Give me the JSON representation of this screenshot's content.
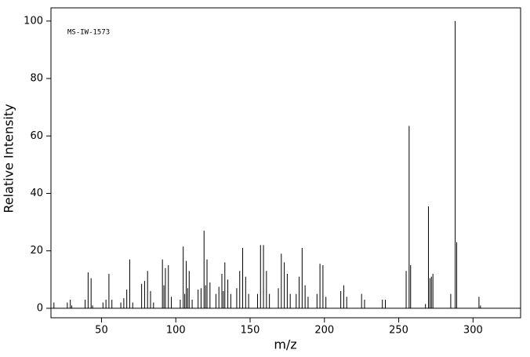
{
  "chart_data": {
    "type": "stem",
    "annotation": "MS-IW-1573",
    "x_label": "m/z",
    "y_label": "Relative Intensity",
    "color": "#000000",
    "x": [
      18,
      27,
      29,
      30,
      39,
      41,
      43,
      44,
      51,
      53,
      55,
      57,
      63,
      65,
      67,
      69,
      71,
      77,
      79,
      81,
      83,
      85,
      91,
      92,
      93,
      95,
      97,
      103,
      105,
      106,
      107,
      108,
      109,
      111,
      115,
      117,
      119,
      120,
      121,
      123,
      127,
      129,
      131,
      132,
      133,
      135,
      137,
      141,
      143,
      145,
      147,
      149,
      155,
      157,
      159,
      161,
      163,
      169,
      171,
      173,
      175,
      177,
      181,
      183,
      185,
      187,
      189,
      195,
      197,
      199,
      201,
      211,
      213,
      215,
      225,
      227,
      239,
      241,
      255,
      257,
      258,
      268,
      270,
      271,
      272,
      273,
      285,
      288,
      289,
      304,
      305
    ],
    "values": [
      2,
      2,
      3,
      1,
      3,
      12.5,
      10.5,
      1,
      2,
      3,
      12,
      3,
      2,
      3.5,
      6.5,
      17,
      2,
      8.5,
      9.5,
      13,
      6,
      2,
      17,
      8,
      14,
      15,
      4,
      3,
      21.5,
      5,
      16.5,
      7,
      13,
      3,
      6.5,
      7,
      27,
      8,
      17,
      9,
      5,
      7.5,
      12,
      6,
      16,
      10,
      5,
      7,
      13,
      21,
      11,
      5,
      5,
      22,
      22,
      13,
      5,
      7,
      19,
      16,
      12,
      5,
      5,
      11,
      21,
      8,
      4,
      5,
      15.5,
      15,
      4,
      6,
      8,
      4,
      5,
      3,
      3,
      3,
      13,
      63.5,
      15,
      1.5,
      35.5,
      10.5,
      11,
      12,
      5,
      100,
      23,
      4,
      1
    ],
    "xlim": [
      16,
      332
    ],
    "ylim": [
      -3.3,
      104.6
    ],
    "xticks": [
      50,
      100,
      150,
      200,
      250,
      300
    ],
    "yticks": [
      0,
      20,
      40,
      60,
      80,
      100
    ]
  }
}
